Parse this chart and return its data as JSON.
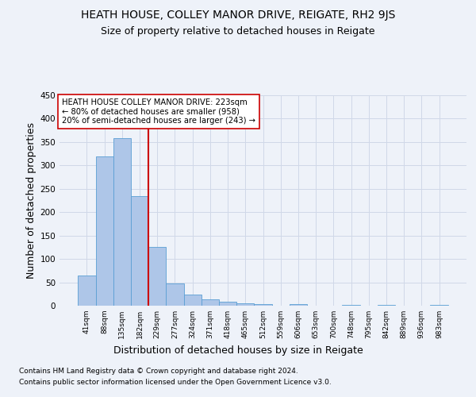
{
  "title1": "HEATH HOUSE, COLLEY MANOR DRIVE, REIGATE, RH2 9JS",
  "title2": "Size of property relative to detached houses in Reigate",
  "xlabel": "Distribution of detached houses by size in Reigate",
  "ylabel": "Number of detached properties",
  "footer1": "Contains HM Land Registry data © Crown copyright and database right 2024.",
  "footer2": "Contains public sector information licensed under the Open Government Licence v3.0.",
  "bar_labels": [
    "41sqm",
    "88sqm",
    "135sqm",
    "182sqm",
    "229sqm",
    "277sqm",
    "324sqm",
    "371sqm",
    "418sqm",
    "465sqm",
    "512sqm",
    "559sqm",
    "606sqm",
    "653sqm",
    "700sqm",
    "748sqm",
    "795sqm",
    "842sqm",
    "889sqm",
    "936sqm",
    "983sqm"
  ],
  "bar_values": [
    65,
    320,
    358,
    235,
    125,
    47,
    23,
    14,
    9,
    5,
    3,
    0,
    3,
    0,
    0,
    2,
    0,
    2,
    0,
    0,
    2
  ],
  "bar_color": "#aec6e8",
  "bar_edge_color": "#5a9fd4",
  "vline_color": "#cc0000",
  "vline_x_index": 3.5,
  "annotation_text": "HEATH HOUSE COLLEY MANOR DRIVE: 223sqm\n← 80% of detached houses are smaller (958)\n20% of semi-detached houses are larger (243) →",
  "annotation_box_color": "#ffffff",
  "annotation_box_edge": "#cc0000",
  "ylim": [
    0,
    450
  ],
  "yticks": [
    0,
    50,
    100,
    150,
    200,
    250,
    300,
    350,
    400,
    450
  ],
  "background_color": "#eef2f9",
  "plot_bg_color": "#eef2f9",
  "grid_color": "#d0d8e8",
  "title1_fontsize": 10,
  "title2_fontsize": 9,
  "xlabel_fontsize": 9,
  "ylabel_fontsize": 9,
  "footer_fontsize": 6.5
}
